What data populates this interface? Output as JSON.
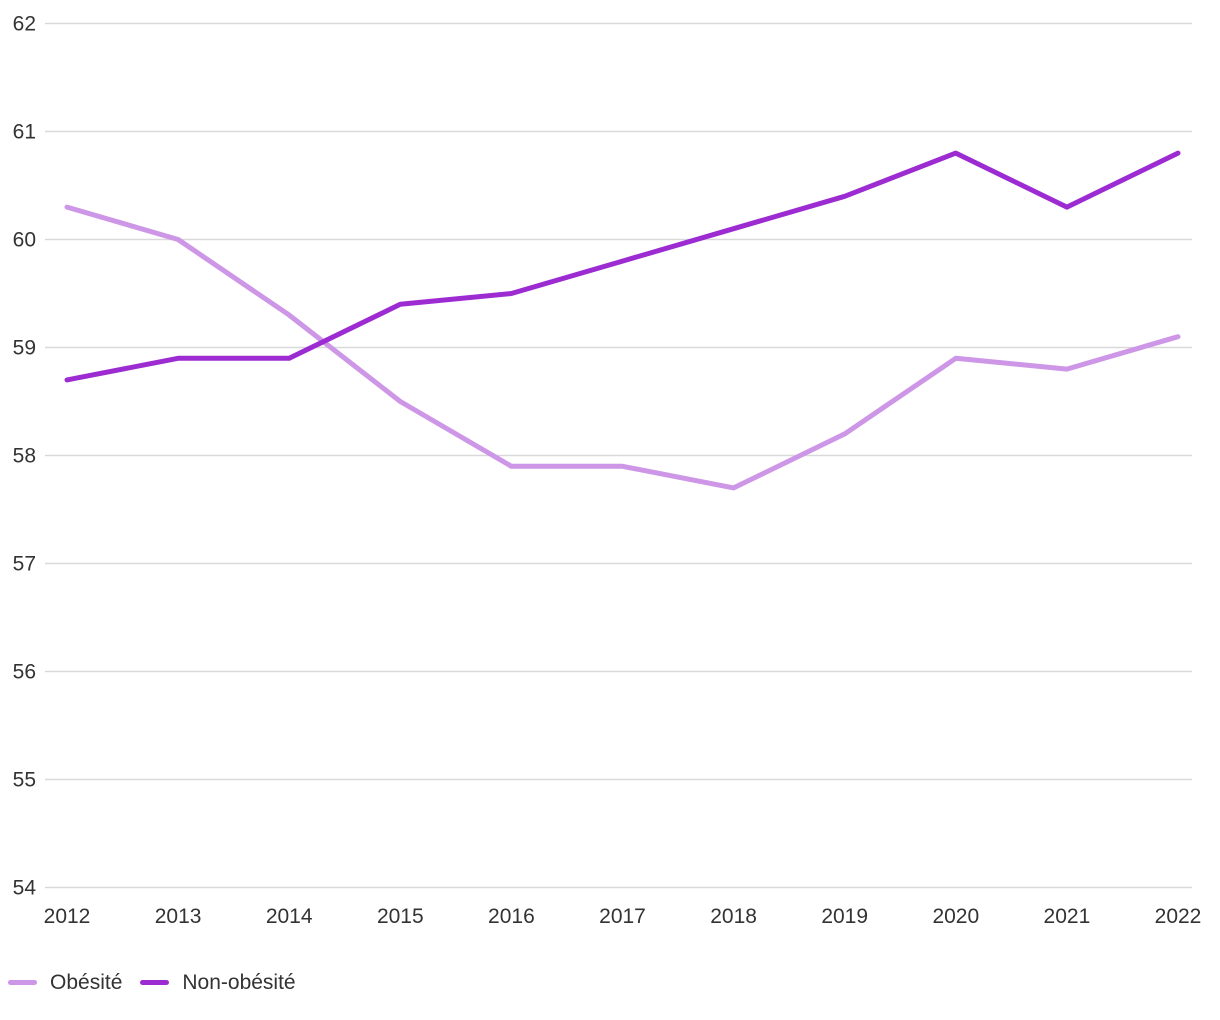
{
  "chart_data": {
    "type": "line",
    "x": [
      "2012",
      "2013",
      "2014",
      "2015",
      "2016",
      "2017",
      "2018",
      "2019",
      "2020",
      "2021",
      "2022"
    ],
    "series": [
      {
        "name": "Obésité",
        "color": "#cd96e6",
        "values": [
          60.3,
          60.0,
          59.3,
          58.5,
          57.9,
          57.9,
          57.7,
          58.2,
          58.9,
          58.8,
          59.1
        ]
      },
      {
        "name": "Non-obésité",
        "color": "#9c2bd2",
        "values": [
          58.7,
          58.9,
          58.9,
          59.4,
          59.5,
          59.8,
          60.1,
          60.4,
          60.8,
          60.3,
          60.8
        ]
      }
    ],
    "title": "",
    "xlabel": "",
    "ylabel": "",
    "ylim": [
      54,
      62
    ],
    "y_tick_labels": [
      "54",
      "55",
      "56",
      "57",
      "58",
      "59",
      "60",
      "61",
      "62"
    ],
    "grid": true,
    "legend_position": "bottom-left"
  },
  "colors": {
    "gridline": "#d9d9d9",
    "tick_text": "#333333",
    "background": "#ffffff"
  }
}
